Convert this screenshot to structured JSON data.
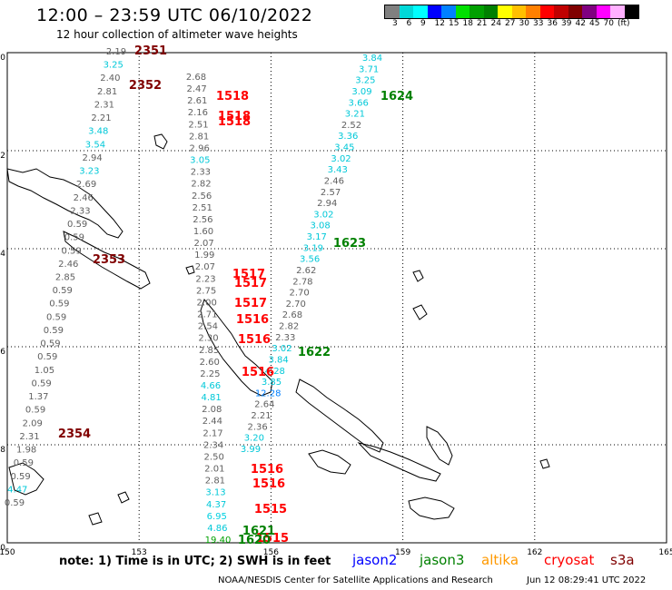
{
  "title": "12:00 – 23:59 UTC 06/10/2022",
  "subtitle": "12 hour collection of altimeter wave heights",
  "colorbar": {
    "colors": [
      "#808080",
      "#00d8d8",
      "#00ffff",
      "#0000ff",
      "#0080ff",
      "#00e000",
      "#00a000",
      "#008000",
      "#ffff00",
      "#ffc000",
      "#ff8000",
      "#ff0000",
      "#c00000",
      "#800000",
      "#800080",
      "#ff00ff",
      "#ffb0ff",
      "#000000"
    ],
    "labels": [
      "3",
      "6",
      "9",
      "12",
      "15",
      "18",
      "21",
      "24",
      "27",
      "30",
      "33",
      "36",
      "39",
      "42",
      "45",
      "70",
      "(ft)"
    ]
  },
  "lat_labels": [
    "0",
    "-2",
    "-4",
    "-6",
    "-8",
    "-10"
  ],
  "lon_labels": [
    "150",
    "153",
    "156",
    "159",
    "162",
    "165"
  ],
  "passes": [
    {
      "id": "2351",
      "color": "#800000"
    },
    {
      "id": "2352",
      "color": "#800000"
    },
    {
      "id": "2353",
      "color": "#800000"
    },
    {
      "id": "2354",
      "color": "#800000"
    },
    {
      "id": "1518",
      "color": "#ff0000"
    },
    {
      "id": "1518",
      "color": "#ff0000"
    },
    {
      "id": "1518",
      "color": "#ff0000"
    },
    {
      "id": "1517",
      "color": "#ff0000"
    },
    {
      "id": "1517",
      "color": "#ff0000"
    },
    {
      "id": "1517",
      "color": "#ff0000"
    },
    {
      "id": "1516",
      "color": "#ff0000"
    },
    {
      "id": "1516",
      "color": "#ff0000"
    },
    {
      "id": "1516",
      "color": "#ff0000"
    },
    {
      "id": "1516",
      "color": "#ff0000"
    },
    {
      "id": "1516",
      "color": "#ff0000"
    },
    {
      "id": "1515",
      "color": "#ff0000"
    },
    {
      "id": "1515",
      "color": "#ff0000"
    },
    {
      "id": "1624",
      "color": "#008000"
    },
    {
      "id": "1623",
      "color": "#008000"
    },
    {
      "id": "1622",
      "color": "#008000"
    },
    {
      "id": "1621",
      "color": "#008000"
    },
    {
      "id": "1620",
      "color": "#008000"
    }
  ],
  "track_a_values": [
    "2.19",
    "3.25",
    "2.40",
    "2.81",
    "2.31",
    "2.21",
    "3.48",
    "3.54",
    "2.94",
    "3.23",
    "2.69",
    "2.46",
    "2.33",
    "0.59",
    "0.59",
    "0.59",
    "2.46",
    "2.85",
    "0.59",
    "0.59",
    "0.59",
    "0.59",
    "0.59",
    "0.59",
    "1.05",
    "0.59",
    "1.37",
    "0.59",
    "2.09",
    "2.31",
    "1.98",
    "0.59",
    "0.59",
    "4.47",
    "0.59"
  ],
  "track_b_values": [
    "2.68",
    "2.47",
    "2.61",
    "2.16",
    "2.51",
    "2.81",
    "2.96",
    "3.05",
    "2.33",
    "2.82",
    "2.56",
    "2.51",
    "2.56",
    "1.60",
    "2.07",
    "1.99",
    "2.07",
    "2.23",
    "2.75",
    "2.00",
    "2.71",
    "2.54",
    "2.30",
    "2.85",
    "2.60",
    "2.25",
    "4.66",
    "4.81",
    "2.08",
    "2.44",
    "2.17",
    "2.34",
    "2.50",
    "2.01",
    "2.81",
    "3.13",
    "4.37",
    "6.95",
    "4.86",
    "19.40"
  ],
  "track_c_values": [
    "3.84",
    "3.71",
    "3.25",
    "3.09",
    "3.66",
    "3.21",
    "2.52",
    "3.36",
    "3.45",
    "3.02",
    "3.43",
    "2.46",
    "2.57",
    "2.94",
    "3.02",
    "3.08",
    "3.17",
    "3.19",
    "3.56",
    "2.62",
    "2.78",
    "2.70",
    "2.70",
    "2.68",
    "2.82",
    "2.33",
    "3.02",
    "3.84",
    "4.28",
    "3.85",
    "12.28",
    "2.64",
    "2.21",
    "2.36",
    "3.20",
    "3.99"
  ],
  "note": "note:  1) Time is in UTC;  2) SWH is in feet",
  "satellites": [
    {
      "name": "jason2",
      "color": "#0000ff"
    },
    {
      "name": "jason3",
      "color": "#008000"
    },
    {
      "name": "altika",
      "color": "#ff9900"
    },
    {
      "name": "cryosat",
      "color": "#ff0000"
    },
    {
      "name": "s3a",
      "color": "#800000"
    }
  ],
  "footer": "NOAA/NESDIS Center for Satellite Applications and Research",
  "footer_time": "Jun 12 08:29:41 UTC 2022"
}
